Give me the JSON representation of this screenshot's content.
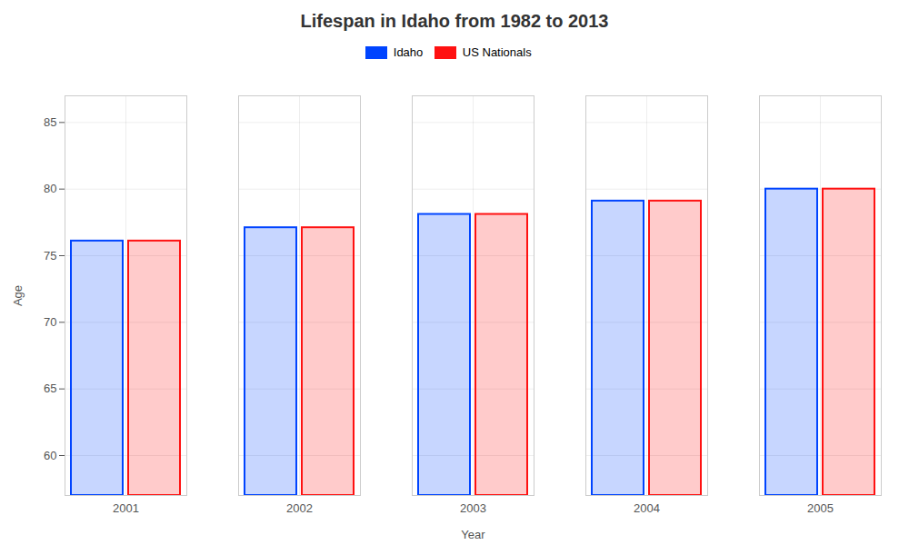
{
  "chart_data": {
    "type": "bar",
    "title": "Lifespan in Idaho from 1982 to 2013",
    "xlabel": "Year",
    "ylabel": "Age",
    "categories": [
      "2001",
      "2002",
      "2003",
      "2004",
      "2005"
    ],
    "series": [
      {
        "name": "Idaho",
        "color": "#0044ff",
        "values": [
          76.1,
          77.1,
          78.1,
          79.1,
          80.0
        ]
      },
      {
        "name": "US Nationals",
        "color": "#ff1111",
        "values": [
          76.1,
          77.1,
          78.1,
          79.1,
          80.0
        ]
      }
    ],
    "ylim": [
      57,
      87
    ],
    "yticks": [
      60,
      65,
      70,
      75,
      80,
      85
    ],
    "grid": true,
    "legend": "top"
  }
}
